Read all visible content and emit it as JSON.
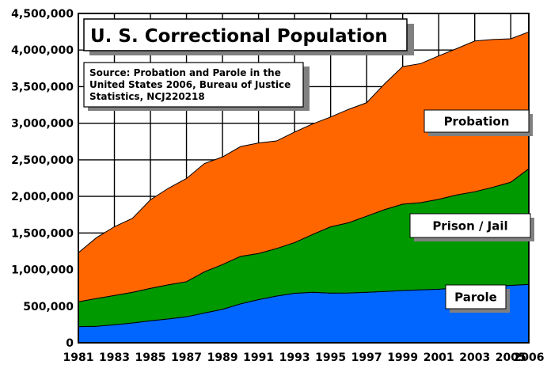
{
  "chart_data": {
    "type": "area",
    "stacked": true,
    "title": "U. S. Correctional Population",
    "source_note": [
      "Source: Probation and Parole in the",
      "United States 2006, Bureau of Justice",
      "Statistics, NCJ220218"
    ],
    "x": [
      1981,
      1982,
      1983,
      1984,
      1985,
      1986,
      1987,
      1988,
      1989,
      1990,
      1991,
      1992,
      1993,
      1994,
      1995,
      1996,
      1997,
      1998,
      1999,
      2000,
      2001,
      2002,
      2003,
      2004,
      2005,
      2006
    ],
    "x_ticks": [
      "1981",
      "1983",
      "1985",
      "1987",
      "1989",
      "1991",
      "1993",
      "1995",
      "1997",
      "1999",
      "2001",
      "2003",
      "2005",
      "2006"
    ],
    "y_ticks": [
      "0",
      "500,000",
      "1,000,000",
      "1,500,000",
      "2,000,000",
      "2,500,000",
      "3,000,000",
      "3,500,000",
      "4,000,000",
      "4,500,000"
    ],
    "ylim": [
      0,
      4500000
    ],
    "grid": true,
    "series": [
      {
        "name": "Parole",
        "color": "#0066ff",
        "values": [
          220000,
          225000,
          246000,
          270000,
          300000,
          326000,
          355000,
          407000,
          457000,
          531000,
          590000,
          638000,
          676000,
          690000,
          679000,
          680000,
          690000,
          700000,
          714000,
          723000,
          731000,
          750000,
          774000,
          775000,
          784000,
          798000
        ]
      },
      {
        "name": "Prison / Jail",
        "color": "#009900",
        "values": [
          340000,
          380000,
          400000,
          420000,
          444000,
          466000,
          480000,
          563000,
          612000,
          650000,
          630000,
          650000,
          693000,
          790000,
          906000,
          960000,
          1040000,
          1120000,
          1180000,
          1192000,
          1230000,
          1270000,
          1290000,
          1350000,
          1410000,
          1580000
        ]
      },
      {
        "name": "Probation",
        "color": "#ff6600",
        "values": [
          670000,
          830000,
          940000,
          1010000,
          1210000,
          1320000,
          1410000,
          1480000,
          1470000,
          1500000,
          1510000,
          1470000,
          1510000,
          1510000,
          1500000,
          1550000,
          1550000,
          1720000,
          1880000,
          1900000,
          1960000,
          2000000,
          2060000,
          2020000,
          1960000,
          1870000
        ]
      }
    ]
  }
}
